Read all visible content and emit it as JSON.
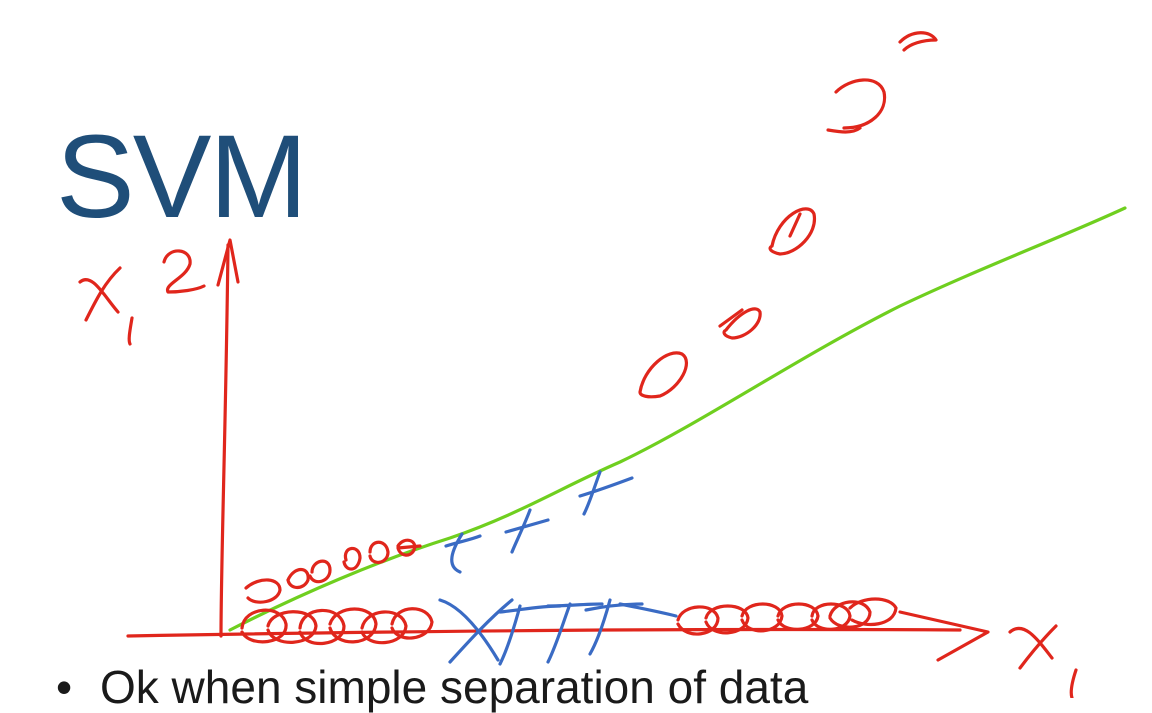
{
  "slide": {
    "title": "SVM",
    "bullet": "Ok when simple separation of data"
  },
  "colors": {
    "title": "#1f4e79",
    "ink_red": "#e0261c",
    "ink_blue": "#3a6bc4",
    "ink_green": "#6fcf1f"
  }
}
